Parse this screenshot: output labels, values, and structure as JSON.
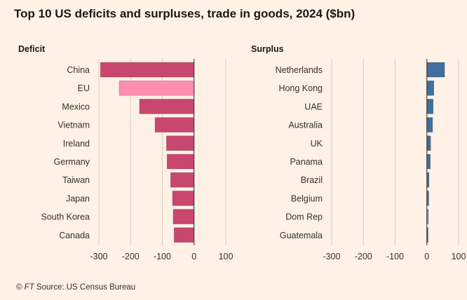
{
  "title": "Top 10 US deficits and surpluses, trade in goods, 2024 ($bn)",
  "source": {
    "ft_prefix": "© FT",
    "text": "Source: US Census Bureau"
  },
  "chart_data": [
    {
      "type": "bar",
      "orientation": "horizontal",
      "panel_label": "Deficit",
      "categories": [
        "China",
        "EU",
        "Mexico",
        "Vietnam",
        "Ireland",
        "Germany",
        "Taiwan",
        "Japan",
        "South Korea",
        "Canada"
      ],
      "values": [
        -295,
        -236,
        -172,
        -123,
        -87,
        -85,
        -74,
        -68,
        -66,
        -63
      ],
      "xlim": [
        -300,
        100
      ],
      "ticks": [
        -300,
        -200,
        -100,
        0,
        100
      ],
      "tick_labels": [
        "-300",
        "-200",
        "-100",
        "0",
        "100"
      ],
      "colors": {
        "default": "#C7476F",
        "highlight": "#FF8DB0",
        "highlight_category": "EU"
      },
      "grid": true
    },
    {
      "type": "bar",
      "orientation": "horizontal",
      "panel_label": "Surplus",
      "categories": [
        "Netherlands",
        "Hong Kong",
        "UAE",
        "Australia",
        "UK",
        "Panama",
        "Brazil",
        "Belgium",
        "Dom Rep",
        "Guatemala"
      ],
      "values": [
        56,
        22,
        20,
        18,
        12,
        11,
        7,
        6,
        5,
        4
      ],
      "xlim": [
        -300,
        100
      ],
      "ticks": [
        -300,
        -200,
        -100,
        0,
        100
      ],
      "tick_labels": [
        "-300",
        "-200",
        "-100",
        "0",
        "100"
      ],
      "colors": {
        "default": "#416E9B",
        "highlight": "#5A9FD6",
        "highlight_category": "Dom Rep"
      },
      "grid": true
    }
  ]
}
